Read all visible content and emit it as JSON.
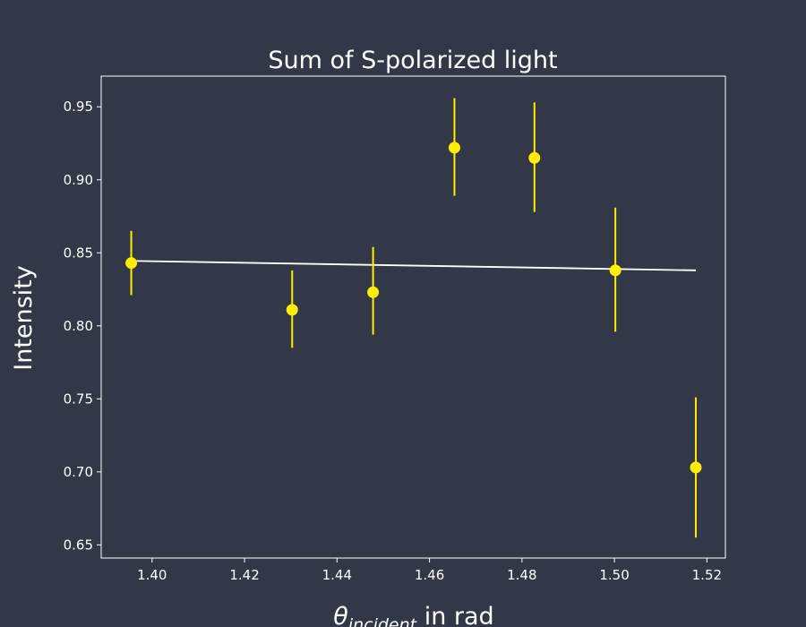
{
  "chart_data": {
    "type": "scatter",
    "title": "Sum of S-polarized light",
    "xlabel": {
      "symbol": "θ",
      "subscript": "incident",
      "suffix": " in rad"
    },
    "ylabel": "Intensity",
    "xlim": [
      1.389,
      1.524
    ],
    "ylim": [
      0.641,
      0.971
    ],
    "x_ticks": [
      1.4,
      1.42,
      1.44,
      1.46,
      1.48,
      1.5,
      1.52
    ],
    "y_ticks": [
      0.65,
      0.7,
      0.75,
      0.8,
      0.85,
      0.9,
      0.95
    ],
    "grid": false,
    "points": [
      {
        "x": 1.3955,
        "y": 0.843,
        "yerr_low": 0.821,
        "yerr_high": 0.865
      },
      {
        "x": 1.4303,
        "y": 0.811,
        "yerr_low": 0.785,
        "yerr_high": 0.838
      },
      {
        "x": 1.4478,
        "y": 0.823,
        "yerr_low": 0.794,
        "yerr_high": 0.854
      },
      {
        "x": 1.4654,
        "y": 0.922,
        "yerr_low": 0.889,
        "yerr_high": 0.956
      },
      {
        "x": 1.4827,
        "y": 0.915,
        "yerr_low": 0.878,
        "yerr_high": 0.953
      },
      {
        "x": 1.5002,
        "y": 0.838,
        "yerr_low": 0.796,
        "yerr_high": 0.881
      },
      {
        "x": 1.5176,
        "y": 0.703,
        "yerr_low": 0.655,
        "yerr_high": 0.751
      }
    ],
    "fit_line": {
      "x": [
        1.3955,
        1.5176
      ],
      "y": [
        0.8445,
        0.838
      ]
    },
    "colors": {
      "background": "#323848",
      "points": "#ffee00",
      "errorbars": "#ffee00",
      "fit_line": "#ffffff",
      "axes": "#ffffff",
      "text": "#ffffff"
    }
  }
}
